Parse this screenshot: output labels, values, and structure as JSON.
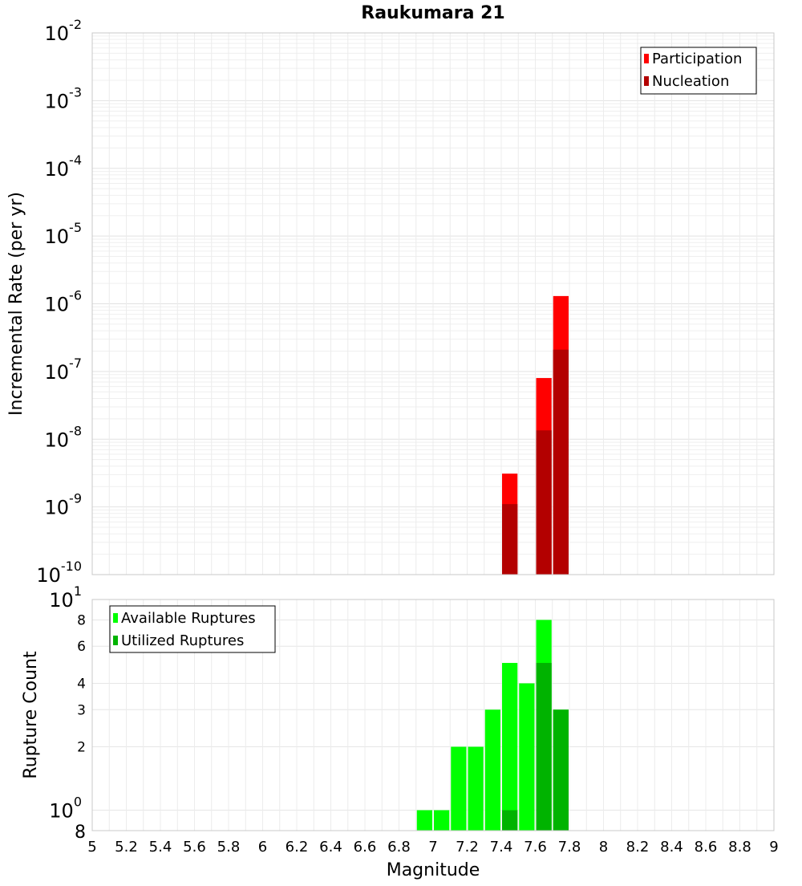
{
  "chart_data": [
    {
      "type": "bar",
      "title": "Raukumara 21",
      "xlabel": "",
      "ylabel": "Incremental Rate (per yr)",
      "xlim": [
        5,
        9
      ],
      "ylim": [
        1e-10,
        0.01
      ],
      "yscale": "log",
      "grid": true,
      "legend_position": "top-right",
      "bar_width": 0.1,
      "y_tick_exponents": [
        "-2",
        "-3",
        "-4",
        "-5",
        "-6",
        "-7",
        "-8",
        "-9",
        "-10"
      ],
      "series": [
        {
          "name": "Participation",
          "color": "#ff0000",
          "x": [
            7.45,
            7.65,
            7.75
          ],
          "values": [
            3.1e-09,
            8e-08,
            1.3e-06
          ]
        },
        {
          "name": "Nucleation",
          "color": "#b30000",
          "x": [
            7.45,
            7.65,
            7.75
          ],
          "values": [
            1.1e-09,
            1.35e-08,
            2.1e-07
          ]
        }
      ]
    },
    {
      "type": "bar",
      "xlabel": "Magnitude",
      "ylabel": "Rupture Count",
      "xlim": [
        5,
        9
      ],
      "ylim": [
        0.8,
        10
      ],
      "yscale": "log",
      "grid": true,
      "legend_position": "top-left",
      "bar_width": 0.1,
      "x_ticks": [
        "5",
        "5.2",
        "5.4",
        "5.6",
        "5.8",
        "6",
        "6.2",
        "6.4",
        "6.6",
        "6.8",
        "7",
        "7.2",
        "7.4",
        "7.6",
        "7.8",
        "8",
        "8.2",
        "8.4",
        "8.6",
        "8.8",
        "9"
      ],
      "y_ticks": [
        {
          "value": 10,
          "base": "10",
          "exp": "1"
        },
        {
          "value": 8,
          "label": "8"
        },
        {
          "value": 6,
          "label": "6"
        },
        {
          "value": 4,
          "label": "4"
        },
        {
          "value": 3,
          "label": "3"
        },
        {
          "value": 2,
          "label": "2"
        },
        {
          "value": 1,
          "base": "10",
          "exp": "0"
        },
        {
          "value": 0.8,
          "label": "8"
        }
      ],
      "series": [
        {
          "name": "Available Ruptures",
          "color": "#00ff00",
          "x": [
            6.95,
            7.05,
            7.15,
            7.25,
            7.35,
            7.45,
            7.55,
            7.65,
            7.75
          ],
          "values": [
            1,
            1,
            2,
            2,
            3,
            5,
            4,
            8,
            3
          ]
        },
        {
          "name": "Utilized Ruptures",
          "color": "#00b300",
          "x": [
            7.45,
            7.65,
            7.75
          ],
          "values": [
            1,
            5,
            3
          ]
        }
      ]
    }
  ]
}
